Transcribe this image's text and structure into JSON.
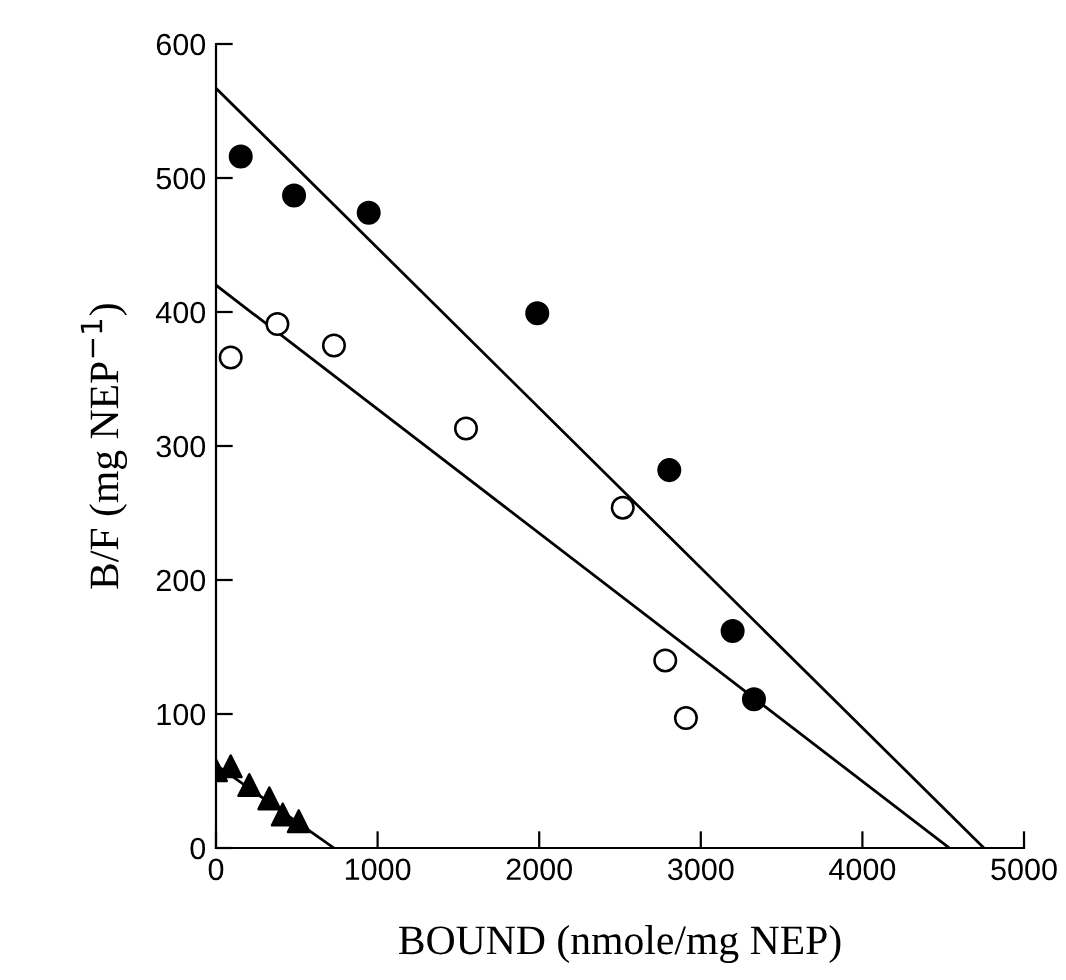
{
  "chart_data": {
    "type": "scatter",
    "xlabel": "BOUND (nmole/mg NEP)",
    "ylabel": "B/F (mg NEP$^{−1}$)",
    "xlim": [
      0,
      5000
    ],
    "ylim": [
      0,
      600
    ],
    "xticks": [
      0,
      1000,
      2000,
      3000,
      4000,
      5000
    ],
    "yticks": [
      0,
      100,
      200,
      300,
      400,
      500,
      600
    ],
    "grid": false,
    "legend": false,
    "series": [
      {
        "marker": "circle",
        "color": "#000000",
        "x": [
          153,
          483,
          945,
          1988,
          2805,
          3197,
          3329
        ],
        "values": [
          516,
          487,
          474,
          399,
          282,
          162,
          111
        ]
      },
      {
        "marker": "circle",
        "color": "#ffffff",
        "x": [
          91,
          380,
          730,
          1547,
          2517,
          2780,
          2908
        ],
        "values": [
          366,
          391,
          375,
          313,
          254,
          140,
          97
        ]
      },
      {
        "marker": "triangle",
        "color": "#000000",
        "x": [
          0,
          91,
          206,
          330,
          413,
          512
        ],
        "values": [
          58,
          61,
          47,
          37,
          25,
          20
        ]
      },
      {
        "type": "line",
        "marker": "none",
        "line_style": "solid",
        "color": "#000000",
        "x": [
          0,
          4752
        ],
        "values": [
          567,
          0
        ]
      },
      {
        "type": "line",
        "marker": "none",
        "line_style": "solid",
        "color": "#000000",
        "x": [
          0,
          4538
        ],
        "values": [
          420,
          0
        ]
      },
      {
        "type": "line",
        "marker": "none",
        "line_style": "solid",
        "color": "#000000",
        "x": [
          0,
          730
        ],
        "values": [
          62,
          0
        ]
      }
    ]
  }
}
